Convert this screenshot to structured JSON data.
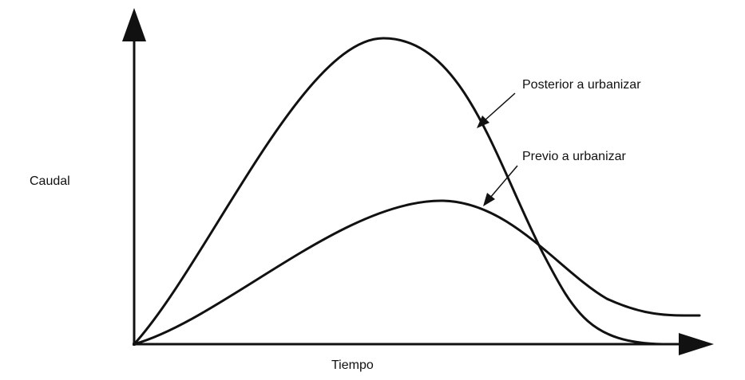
{
  "axes": {
    "y_label": "Caudal",
    "x_label": "Tiempo"
  },
  "curves": [
    {
      "label": "Posterior a urbanizar"
    },
    {
      "label": "Previo a urbanizar"
    }
  ]
}
